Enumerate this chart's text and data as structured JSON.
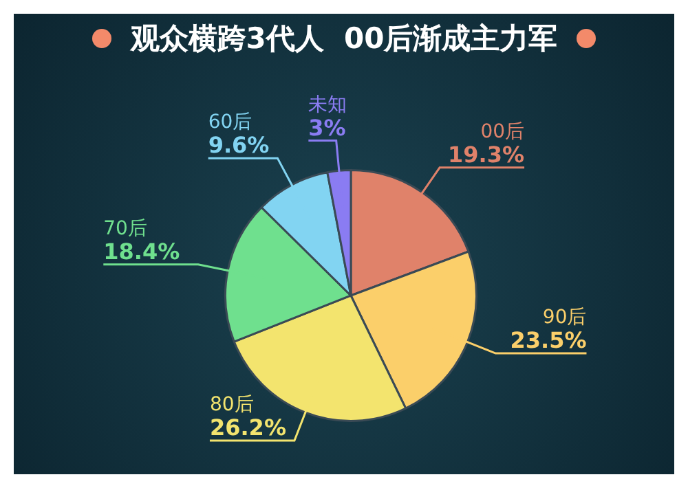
{
  "chart_data": {
    "type": "pie",
    "title": "观众横跨3代人  00后渐成主力军",
    "categories": [
      "00后",
      "90后",
      "80后",
      "70后",
      "60后",
      "未知"
    ],
    "values": [
      19.3,
      23.5,
      26.2,
      18.4,
      9.6,
      3
    ],
    "value_labels": [
      "19.3%",
      "23.5%",
      "26.2%",
      "18.4%",
      "9.6%",
      "3%"
    ],
    "colors": [
      "#e0826a",
      "#fbcf6a",
      "#f3e46e",
      "#6fe08e",
      "#82d4f2",
      "#8a7cf2"
    ],
    "legend": false
  }
}
